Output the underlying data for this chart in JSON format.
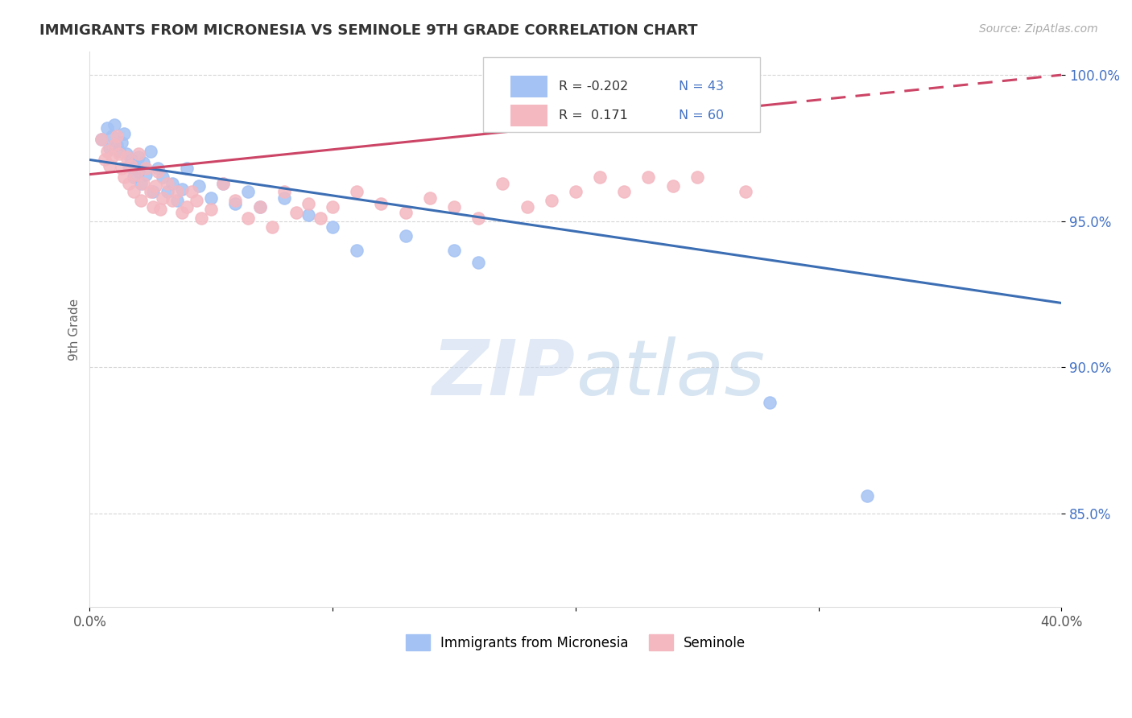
{
  "title": "IMMIGRANTS FROM MICRONESIA VS SEMINOLE 9TH GRADE CORRELATION CHART",
  "source_text": "Source: ZipAtlas.com",
  "ylabel": "9th Grade",
  "xlim": [
    0.0,
    0.4
  ],
  "ylim": [
    0.818,
    1.008
  ],
  "yticks": [
    0.85,
    0.9,
    0.95,
    1.0
  ],
  "ytick_labels": [
    "85.0%",
    "90.0%",
    "95.0%",
    "100.0%"
  ],
  "blue_color": "#a4c2f4",
  "pink_color": "#f4b8c1",
  "blue_line_color": "#3c6eb4",
  "pink_line_color": "#cc4466",
  "blue_line_x0": 0.0,
  "blue_line_y0": 0.971,
  "blue_line_x1": 0.4,
  "blue_line_y1": 0.922,
  "pink_line_x0": 0.0,
  "pink_line_y0": 0.966,
  "pink_line_x1": 0.4,
  "pink_line_y1": 1.0,
  "watermark_zip": "ZIP",
  "watermark_atlas": "atlas",
  "blue_x": [
    0.005,
    0.007,
    0.008,
    0.009,
    0.01,
    0.011,
    0.012,
    0.013,
    0.014,
    0.015,
    0.016,
    0.017,
    0.018,
    0.019,
    0.02,
    0.02,
    0.021,
    0.022,
    0.023,
    0.025,
    0.026,
    0.028,
    0.03,
    0.032,
    0.034,
    0.036,
    0.038,
    0.04,
    0.045,
    0.05,
    0.055,
    0.06,
    0.065,
    0.07,
    0.08,
    0.09,
    0.1,
    0.11,
    0.13,
    0.15,
    0.16,
    0.28,
    0.32
  ],
  "blue_y": [
    0.978,
    0.982,
    0.975,
    0.979,
    0.983,
    0.976,
    0.974,
    0.977,
    0.98,
    0.973,
    0.969,
    0.971,
    0.965,
    0.968,
    0.972,
    0.967,
    0.963,
    0.97,
    0.966,
    0.974,
    0.96,
    0.968,
    0.965,
    0.96,
    0.963,
    0.957,
    0.961,
    0.968,
    0.962,
    0.958,
    0.963,
    0.956,
    0.96,
    0.955,
    0.958,
    0.952,
    0.948,
    0.94,
    0.945,
    0.94,
    0.936,
    0.888,
    0.856
  ],
  "pink_x": [
    0.005,
    0.006,
    0.007,
    0.008,
    0.009,
    0.01,
    0.011,
    0.012,
    0.013,
    0.014,
    0.015,
    0.016,
    0.017,
    0.018,
    0.019,
    0.02,
    0.021,
    0.022,
    0.023,
    0.025,
    0.026,
    0.027,
    0.028,
    0.029,
    0.03,
    0.032,
    0.034,
    0.036,
    0.038,
    0.04,
    0.042,
    0.044,
    0.046,
    0.05,
    0.055,
    0.06,
    0.065,
    0.07,
    0.075,
    0.08,
    0.085,
    0.09,
    0.095,
    0.1,
    0.11,
    0.12,
    0.13,
    0.14,
    0.15,
    0.16,
    0.17,
    0.18,
    0.19,
    0.2,
    0.21,
    0.22,
    0.23,
    0.24,
    0.25,
    0.27
  ],
  "pink_y": [
    0.978,
    0.971,
    0.974,
    0.969,
    0.972,
    0.976,
    0.979,
    0.973,
    0.968,
    0.965,
    0.972,
    0.963,
    0.969,
    0.96,
    0.966,
    0.973,
    0.957,
    0.963,
    0.968,
    0.96,
    0.955,
    0.962,
    0.967,
    0.954,
    0.958,
    0.963,
    0.957,
    0.96,
    0.953,
    0.955,
    0.96,
    0.957,
    0.951,
    0.954,
    0.963,
    0.957,
    0.951,
    0.955,
    0.948,
    0.96,
    0.953,
    0.956,
    0.951,
    0.955,
    0.96,
    0.956,
    0.953,
    0.958,
    0.955,
    0.951,
    0.963,
    0.955,
    0.957,
    0.96,
    0.965,
    0.96,
    0.965,
    0.962,
    0.965,
    0.96
  ]
}
